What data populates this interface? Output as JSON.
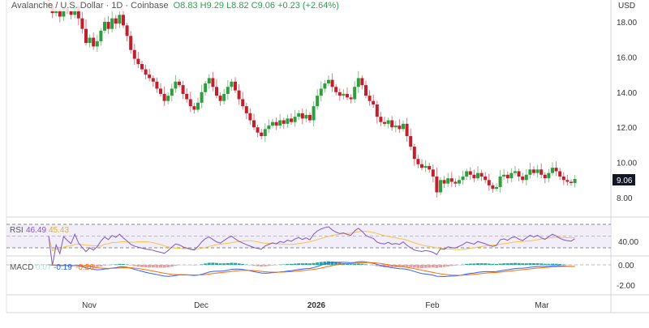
{
  "header": {
    "symbol": "Avalanche / U.S. Dollar · 1D · Coinbase",
    "ohlc": "O8.83 H9.29 L8.82 C9.06 +0.23 (+2.64%)"
  },
  "price_axis": {
    "currency": "USD",
    "ticks": [
      "18.00",
      "16.00",
      "14.00",
      "12.00",
      "10.00",
      "8.00"
    ],
    "last_price": "9.06"
  },
  "rsi": {
    "label": "RSI",
    "value": "46.49",
    "ma": "45.43",
    "tick": "40.00"
  },
  "macd": {
    "label": "MACD",
    "hist": "0.07",
    "macd": "-0.19",
    "signal": "-0.26",
    "ticks": [
      "0.00",
      "-2.00"
    ]
  },
  "time_axis": [
    "Nov",
    "Dec",
    "2026",
    "Feb",
    "Mar"
  ],
  "colors": {
    "up": "#26a69a",
    "down": "#c0202d",
    "upCandle": "#2e9e3e",
    "rsi": "#7e57c2",
    "rsiMa": "#f5c542",
    "macd": "#2962ff",
    "signal": "#ff6d00"
  },
  "chart_data": {
    "type": "candlestick",
    "title": "Avalanche / U.S. Dollar · 1D · Coinbase",
    "ylim": [
      7,
      19.2
    ],
    "closes": [
      18.9,
      18.5,
      18.7,
      18.3,
      18.8,
      18.6,
      18.4,
      18.9,
      18.2,
      17.6,
      16.8,
      17.1,
      16.6,
      16.9,
      17.5,
      18.0,
      17.6,
      18.2,
      17.9,
      18.4,
      17.8,
      17.2,
      16.4,
      15.9,
      15.6,
      15.3,
      15.0,
      14.8,
      14.6,
      14.2,
      13.9,
      13.5,
      13.8,
      14.2,
      14.6,
      14.4,
      13.9,
      13.6,
      13.2,
      13.0,
      13.4,
      14.0,
      14.5,
      14.8,
      14.3,
      13.8,
      13.5,
      13.9,
      14.3,
      14.6,
      14.1,
      13.6,
      13.2,
      12.8,
      12.4,
      12.0,
      11.7,
      11.5,
      11.9,
      12.1,
      12.3,
      12.1,
      12.4,
      12.2,
      12.5,
      12.3,
      12.6,
      12.8,
      12.5,
      12.7,
      12.4,
      13.2,
      13.8,
      14.2,
      14.5,
      14.7,
      14.3,
      14.0,
      13.8,
      13.9,
      13.7,
      13.6,
      14.3,
      14.8,
      14.4,
      13.8,
      13.5,
      13.3,
      12.6,
      12.3,
      12.2,
      12.4,
      12.0,
      12.1,
      11.9,
      12.2,
      11.5,
      10.9,
      10.2,
      9.9,
      9.7,
      9.8,
      9.6,
      9.2,
      8.3,
      9.0,
      8.8,
      9.1,
      8.9,
      8.8,
      9.0,
      9.2,
      9.5,
      9.3,
      9.1,
      9.4,
      9.2,
      9.0,
      8.7,
      8.5,
      8.6,
      9.2,
      9.3,
      9.1,
      9.4,
      9.5,
      9.2,
      9.0,
      9.3,
      9.6,
      9.4,
      9.6,
      9.3,
      9.1,
      9.4,
      9.7,
      9.5,
      9.2,
      9.0,
      8.9,
      8.83,
      9.06
    ]
  }
}
